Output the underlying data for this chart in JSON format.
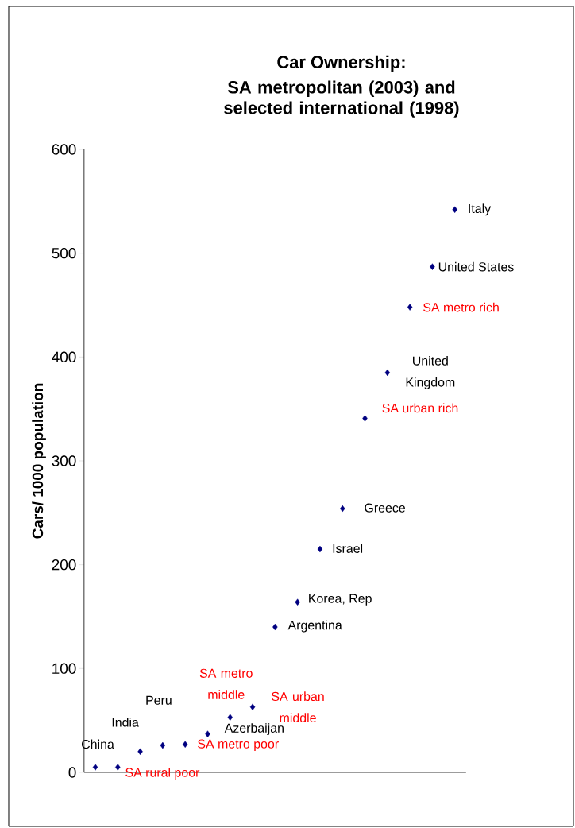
{
  "chart_data": {
    "type": "scatter",
    "title": "Car Ownership:",
    "subtitle": "SA metropolitan (2003) and selected international (1998)",
    "ylabel": "Cars/ 1000 population",
    "categories": [
      null,
      null,
      null,
      null,
      null,
      null,
      null,
      null,
      null,
      null,
      null,
      null,
      null,
      null,
      null,
      null,
      null
    ],
    "series": [
      {
        "color": "#000080",
        "values": [
          5,
          null,
          20,
          26,
          null,
          37,
          null,
          null,
          140,
          164,
          215,
          254,
          null,
          385,
          null,
          487,
          542
        ],
        "value_labels": [
          "China",
          null,
          "India",
          "Peru",
          null,
          "Azerbaijan",
          null,
          null,
          "Argentina",
          "Korea, Rep",
          "Israel",
          "Greece",
          null,
          "United Kingdom",
          null,
          "United States",
          "Italy"
        ]
      },
      {
        "color": "#000080",
        "values": [
          null,
          5,
          null,
          null,
          27,
          null,
          53,
          63,
          null,
          null,
          null,
          null,
          341,
          null,
          448,
          null,
          null
        ],
        "value_labels": [
          null,
          "SA rural poor",
          null,
          null,
          "SA metro poor",
          null,
          "SA metro middle",
          "SA urban middle",
          null,
          null,
          null,
          null,
          "SA urban rich",
          null,
          "SA metro rich",
          null,
          null
        ]
      }
    ],
    "ylim": [
      0,
      600
    ],
    "yticks": [
      0,
      100,
      200,
      300,
      400,
      500,
      600
    ],
    "marker": "diamond",
    "grid": false
  }
}
